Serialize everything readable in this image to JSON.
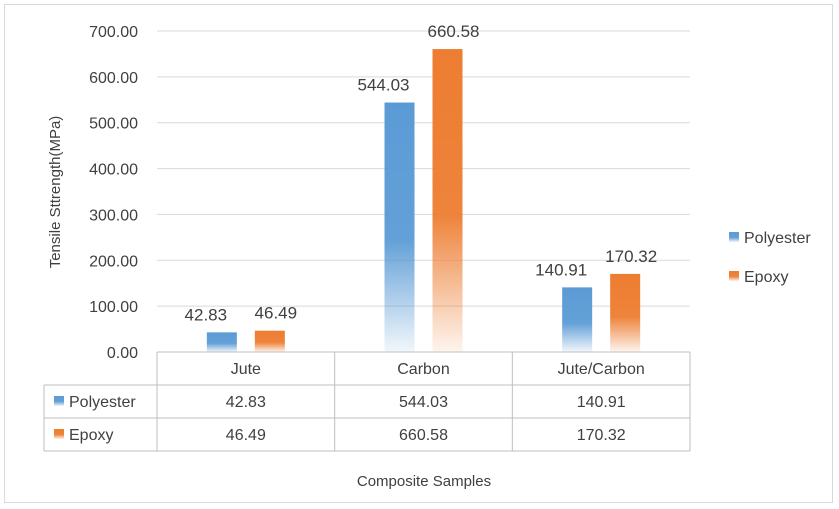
{
  "chart_data": {
    "type": "bar",
    "categories": [
      "Jute",
      "Carbon",
      "Jute/Carbon"
    ],
    "series": [
      {
        "name": "Polyester",
        "values": [
          42.83,
          544.03,
          140.91
        ],
        "value_labels": [
          "42.83",
          "544.03",
          "140.91"
        ],
        "color": "#5b9bd5"
      },
      {
        "name": "Epoxy",
        "values": [
          46.49,
          660.58,
          170.32
        ],
        "value_labels": [
          "46.49",
          "660.58",
          "170.32"
        ],
        "color": "#ed7d31"
      }
    ],
    "ylim": [
      0,
      700
    ],
    "yticks": [
      0,
      100,
      200,
      300,
      400,
      500,
      600,
      700
    ],
    "ytick_labels": [
      "0.00",
      "100.00",
      "200.00",
      "300.00",
      "400.00",
      "500.00",
      "600.00",
      "700.00"
    ],
    "xlabel": "Composite Samples",
    "ylabel": "Tensile  Sttrength(MPa)",
    "grid": true,
    "legend": "right",
    "data_table": true,
    "bar_fill": "gradient fading to white at the base"
  }
}
